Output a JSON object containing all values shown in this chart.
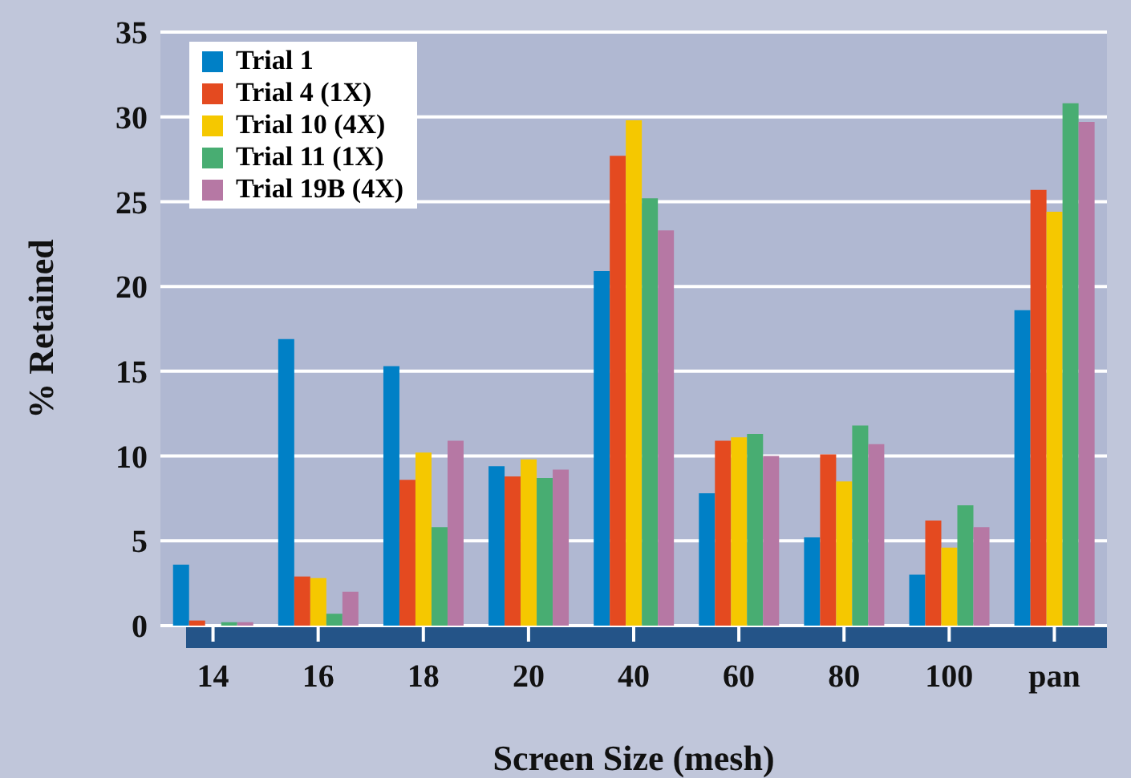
{
  "chart_data": {
    "type": "bar",
    "xlabel": "Screen Size (mesh)",
    "ylabel": "% Retained",
    "categories": [
      "14",
      "16",
      "18",
      "20",
      "40",
      "60",
      "80",
      "100",
      "pan"
    ],
    "series": [
      {
        "name": "Trial 1",
        "color": "#0080c6",
        "values": [
          3.6,
          16.9,
          15.3,
          9.4,
          20.9,
          7.8,
          5.2,
          3.0,
          18.6
        ]
      },
      {
        "name": "Trial 4 (1X)",
        "color": "#e44a20",
        "values": [
          0.3,
          2.9,
          8.6,
          8.8,
          27.7,
          10.9,
          10.1,
          6.2,
          25.7
        ]
      },
      {
        "name": "Trial 10 (4X)",
        "color": "#f5c800",
        "values": [
          0,
          2.8,
          10.2,
          9.8,
          29.8,
          11.1,
          8.5,
          4.6,
          24.4
        ]
      },
      {
        "name": "Trial 11 (1X)",
        "color": "#48ad72",
        "values": [
          0.2,
          0.7,
          5.8,
          8.7,
          25.2,
          11.3,
          11.8,
          7.1,
          30.8
        ]
      },
      {
        "name": "Trial 19B (4X)",
        "color": "#b678a4",
        "values": [
          0.2,
          2.0,
          10.9,
          9.2,
          23.3,
          10.0,
          10.7,
          5.8,
          29.7
        ]
      }
    ],
    "ylim": [
      0,
      35
    ],
    "yticks": [
      0,
      5,
      10,
      15,
      20,
      25,
      30,
      35
    ],
    "grid": "y",
    "legend": "top left"
  }
}
